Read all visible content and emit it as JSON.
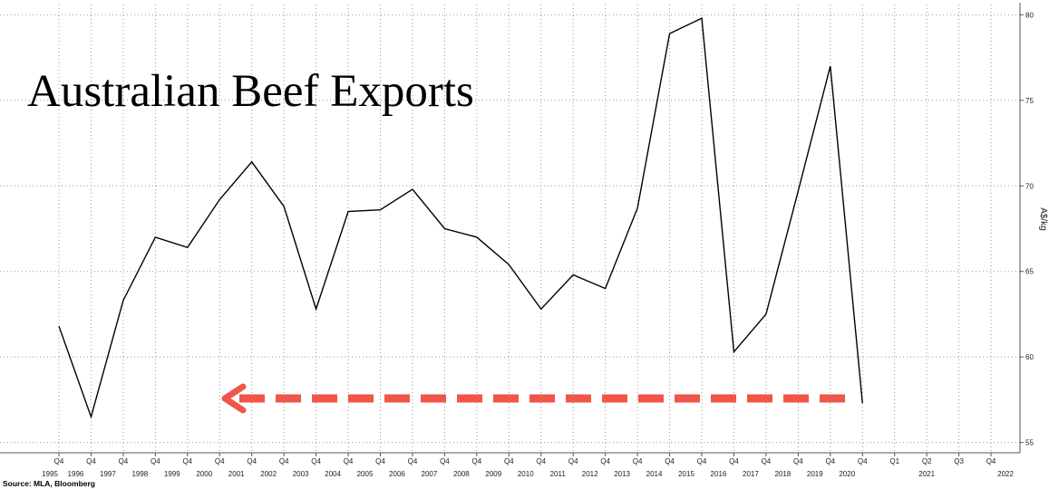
{
  "chart_data": {
    "type": "line",
    "title": "Australian Beef Exports",
    "y_label": "A$/kg",
    "source": "Source: MLA, Bloomberg",
    "categories": [
      "Q4",
      "Q4",
      "Q4",
      "Q4",
      "Q4",
      "Q4",
      "Q4",
      "Q4",
      "Q4",
      "Q4",
      "Q4",
      "Q4",
      "Q4",
      "Q4",
      "Q4",
      "Q4",
      "Q4",
      "Q4",
      "Q4",
      "Q4",
      "Q4",
      "Q4",
      "Q4",
      "Q4",
      "Q4",
      "Q4",
      "Q1",
      "Q2",
      "Q3",
      "Q4"
    ],
    "year_labels": [
      "1995",
      "1996",
      "1997",
      "1998",
      "1999",
      "2000",
      "2001",
      "2002",
      "2003",
      "2004",
      "2005",
      "2006",
      "2007",
      "2008",
      "2009",
      "2010",
      "2011",
      "2012",
      "2013",
      "2014",
      "2015",
      "2016",
      "2017",
      "2018",
      "2019",
      "2020",
      "2021",
      "2022"
    ],
    "values": [
      61.8,
      56.5,
      63.3,
      67.0,
      66.4,
      69.2,
      71.4,
      68.8,
      62.8,
      68.5,
      68.6,
      69.8,
      67.5,
      67.0,
      65.4,
      62.8,
      64.8,
      64.0,
      68.7,
      78.9,
      79.8,
      60.3,
      62.5,
      69.7,
      77.0,
      57.3,
      null,
      null,
      null,
      null
    ],
    "color": "#000000",
    "ylim": [
      54.4,
      80.6
    ],
    "yticks": [
      55,
      60,
      65,
      70,
      75,
      80
    ],
    "grid": true
  }
}
